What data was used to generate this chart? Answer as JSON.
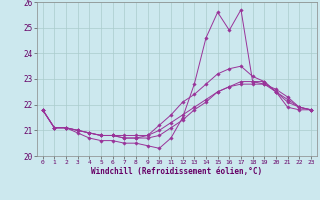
{
  "xlabel": "Windchill (Refroidissement éolien,°C)",
  "bg_color": "#cce8ee",
  "grid_color": "#aacccc",
  "line_color": "#993399",
  "xlim": [
    -0.5,
    23.5
  ],
  "ylim": [
    20,
    26
  ],
  "yticks": [
    20,
    21,
    22,
    23,
    24,
    25,
    26
  ],
  "xticks": [
    0,
    1,
    2,
    3,
    4,
    5,
    6,
    7,
    8,
    9,
    10,
    11,
    12,
    13,
    14,
    15,
    16,
    17,
    18,
    19,
    20,
    21,
    22,
    23
  ],
  "series": [
    [
      21.8,
      21.1,
      21.1,
      20.9,
      20.7,
      20.6,
      20.6,
      20.5,
      20.5,
      20.4,
      20.3,
      20.7,
      21.5,
      22.8,
      24.6,
      25.6,
      24.9,
      25.7,
      22.9,
      22.9,
      22.5,
      21.9,
      21.8,
      21.8
    ],
    [
      21.8,
      21.1,
      21.1,
      21.0,
      20.9,
      20.8,
      20.8,
      20.8,
      20.8,
      20.8,
      21.0,
      21.3,
      21.6,
      21.9,
      22.2,
      22.5,
      22.7,
      22.8,
      22.8,
      22.8,
      22.6,
      22.3,
      21.9,
      21.8
    ],
    [
      21.8,
      21.1,
      21.1,
      21.0,
      20.9,
      20.8,
      20.8,
      20.7,
      20.7,
      20.7,
      20.8,
      21.1,
      21.4,
      21.8,
      22.1,
      22.5,
      22.7,
      22.9,
      22.9,
      22.8,
      22.5,
      22.2,
      21.9,
      21.8
    ],
    [
      21.8,
      21.1,
      21.1,
      21.0,
      20.9,
      20.8,
      20.8,
      20.7,
      20.7,
      20.8,
      21.2,
      21.6,
      22.1,
      22.4,
      22.8,
      23.2,
      23.4,
      23.5,
      23.1,
      22.9,
      22.5,
      22.1,
      21.9,
      21.8
    ]
  ]
}
